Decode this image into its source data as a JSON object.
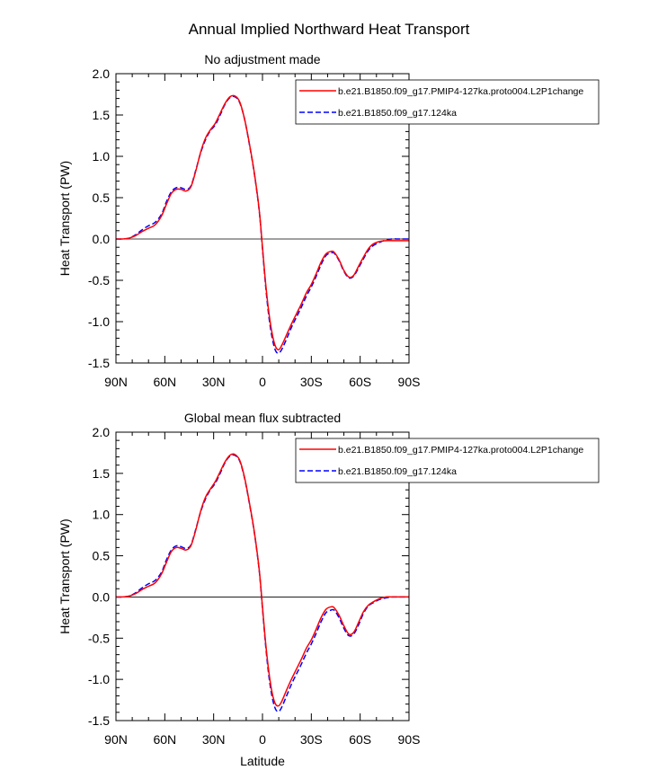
{
  "figure": {
    "title": "Annual Implied Northward Heat Transport"
  },
  "chart_data": [
    {
      "type": "line",
      "title": "No adjustment made",
      "xlabel": "",
      "ylabel": "Heat Transport (PW)",
      "xlim": [
        90,
        -90
      ],
      "ylim": [
        -1.5,
        2.0
      ],
      "x_ticks": [
        90,
        60,
        30,
        0,
        -30,
        -60,
        -90
      ],
      "x_tick_labels": [
        "90N",
        "60N",
        "30N",
        "0",
        "30S",
        "60S",
        "90S"
      ],
      "y_ticks": [
        -1.5,
        -1.0,
        -0.5,
        0.0,
        0.5,
        1.0,
        1.5,
        2.0
      ],
      "y_tick_labels": [
        "-1.5",
        "-1.0",
        "-0.5",
        "0.0",
        "0.5",
        "1.0",
        "1.5",
        "2.0"
      ],
      "reference_line": 0.0,
      "legend_position": "top-right",
      "x": [
        90,
        86,
        82,
        78,
        74,
        70,
        66,
        62,
        59,
        56,
        53,
        50,
        47,
        44,
        41,
        38,
        35,
        32,
        29,
        26,
        23,
        20,
        17,
        14,
        11,
        8,
        5,
        2,
        0,
        -2,
        -4,
        -6,
        -8,
        -10,
        -12,
        -15,
        -18,
        -21,
        -24,
        -27,
        -30,
        -33,
        -36,
        -39,
        -42,
        -44,
        -47,
        -50,
        -53,
        -56,
        -59,
        -62,
        -65,
        -68,
        -72,
        -76,
        -80,
        -84,
        -90
      ],
      "series": [
        {
          "name": "b.e21.B1850.f09_g17.PMIP4-127ka.proto004.L2P1change",
          "color": "#ff0000",
          "style": "solid",
          "values": [
            0.0,
            0.0,
            0.01,
            0.04,
            0.09,
            0.13,
            0.17,
            0.28,
            0.42,
            0.55,
            0.6,
            0.6,
            0.58,
            0.63,
            0.82,
            1.05,
            1.22,
            1.32,
            1.4,
            1.52,
            1.64,
            1.72,
            1.73,
            1.66,
            1.45,
            1.15,
            0.8,
            0.35,
            -0.1,
            -0.55,
            -0.9,
            -1.15,
            -1.3,
            -1.34,
            -1.28,
            -1.15,
            -1.02,
            -0.9,
            -0.78,
            -0.65,
            -0.55,
            -0.42,
            -0.28,
            -0.18,
            -0.15,
            -0.16,
            -0.25,
            -0.38,
            -0.46,
            -0.44,
            -0.33,
            -0.22,
            -0.12,
            -0.06,
            -0.03,
            -0.02,
            -0.02,
            -0.02,
            -0.02
          ]
        },
        {
          "name": "b.e21.B1850.f09_g17.124ka",
          "color": "#0000ff",
          "style": "dashed",
          "values": [
            0.0,
            0.0,
            0.01,
            0.05,
            0.11,
            0.16,
            0.2,
            0.3,
            0.45,
            0.57,
            0.62,
            0.62,
            0.6,
            0.64,
            0.83,
            1.04,
            1.2,
            1.31,
            1.38,
            1.5,
            1.63,
            1.71,
            1.72,
            1.65,
            1.45,
            1.14,
            0.79,
            0.34,
            -0.12,
            -0.58,
            -0.95,
            -1.2,
            -1.35,
            -1.38,
            -1.33,
            -1.2,
            -1.06,
            -0.94,
            -0.82,
            -0.69,
            -0.58,
            -0.45,
            -0.31,
            -0.2,
            -0.17,
            -0.17,
            -0.26,
            -0.39,
            -0.47,
            -0.45,
            -0.35,
            -0.24,
            -0.14,
            -0.08,
            -0.04,
            -0.01,
            0.0,
            0.0,
            0.0
          ]
        }
      ]
    },
    {
      "type": "line",
      "title": "Global mean flux subtracted",
      "xlabel": "Latitude",
      "ylabel": "Heat Transport (PW)",
      "xlim": [
        90,
        -90
      ],
      "ylim": [
        -1.5,
        2.0
      ],
      "x_ticks": [
        90,
        60,
        30,
        0,
        -30,
        -60,
        -90
      ],
      "x_tick_labels": [
        "90N",
        "60N",
        "30N",
        "0",
        "30S",
        "60S",
        "90S"
      ],
      "y_ticks": [
        -1.5,
        -1.0,
        -0.5,
        0.0,
        0.5,
        1.0,
        1.5,
        2.0
      ],
      "y_tick_labels": [
        "-1.5",
        "-1.0",
        "-0.5",
        "0.0",
        "0.5",
        "1.0",
        "1.5",
        "2.0"
      ],
      "reference_line": 0.0,
      "legend_position": "top-right",
      "x": [
        90,
        86,
        82,
        78,
        74,
        70,
        66,
        62,
        59,
        56,
        53,
        50,
        47,
        44,
        41,
        38,
        35,
        32,
        29,
        26,
        23,
        20,
        17,
        14,
        11,
        8,
        5,
        2,
        0,
        -2,
        -4,
        -6,
        -8,
        -10,
        -12,
        -15,
        -18,
        -21,
        -24,
        -27,
        -30,
        -33,
        -36,
        -39,
        -42,
        -44,
        -47,
        -50,
        -53,
        -56,
        -59,
        -62,
        -65,
        -68,
        -72,
        -76,
        -80,
        -84,
        -90
      ],
      "series": [
        {
          "name": "b.e21.B1850.f09_g17.PMIP4-127ka.proto004.L2P1change",
          "color": "#ff0000",
          "style": "solid",
          "values": [
            0.0,
            0.0,
            0.01,
            0.04,
            0.09,
            0.13,
            0.17,
            0.28,
            0.42,
            0.55,
            0.6,
            0.59,
            0.57,
            0.62,
            0.81,
            1.04,
            1.21,
            1.31,
            1.4,
            1.52,
            1.64,
            1.72,
            1.73,
            1.66,
            1.45,
            1.14,
            0.79,
            0.33,
            -0.12,
            -0.57,
            -0.92,
            -1.17,
            -1.3,
            -1.32,
            -1.26,
            -1.12,
            -0.99,
            -0.87,
            -0.75,
            -0.62,
            -0.52,
            -0.39,
            -0.25,
            -0.15,
            -0.12,
            -0.13,
            -0.22,
            -0.35,
            -0.45,
            -0.43,
            -0.31,
            -0.18,
            -0.1,
            -0.06,
            -0.02,
            0.0,
            0.0,
            0.0,
            0.0
          ]
        },
        {
          "name": "b.e21.B1850.f09_g17.124ka",
          "color": "#0000ff",
          "style": "dashed",
          "values": [
            0.0,
            0.0,
            0.01,
            0.05,
            0.11,
            0.16,
            0.2,
            0.3,
            0.45,
            0.57,
            0.62,
            0.61,
            0.59,
            0.63,
            0.82,
            1.03,
            1.19,
            1.3,
            1.38,
            1.5,
            1.63,
            1.71,
            1.72,
            1.65,
            1.44,
            1.13,
            0.78,
            0.32,
            -0.14,
            -0.6,
            -0.97,
            -1.22,
            -1.36,
            -1.39,
            -1.33,
            -1.19,
            -1.05,
            -0.93,
            -0.81,
            -0.68,
            -0.57,
            -0.44,
            -0.3,
            -0.19,
            -0.16,
            -0.16,
            -0.25,
            -0.38,
            -0.47,
            -0.45,
            -0.34,
            -0.2,
            -0.11,
            -0.07,
            -0.03,
            -0.01,
            0.0,
            0.0,
            0.0
          ]
        }
      ]
    }
  ]
}
